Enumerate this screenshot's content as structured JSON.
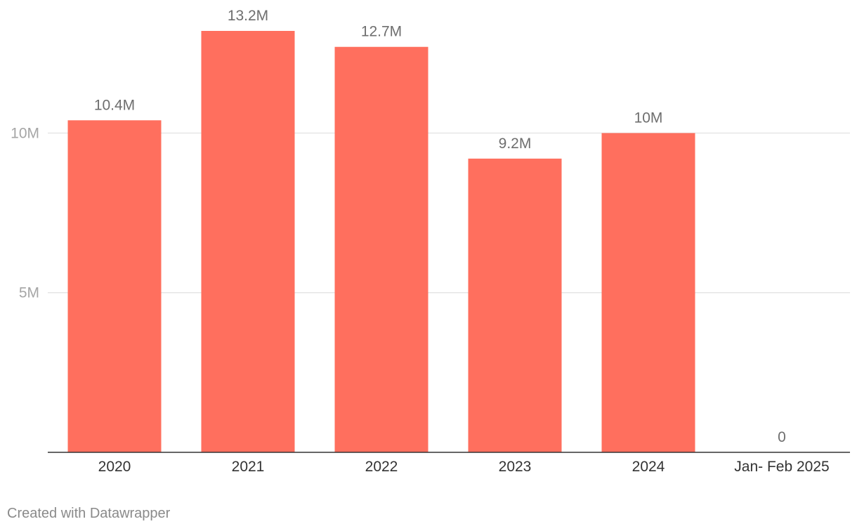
{
  "chart_data": {
    "type": "bar",
    "categories": [
      "2020",
      "2021",
      "2022",
      "2023",
      "2024",
      "Jan- Feb 2025"
    ],
    "values": [
      10.4,
      13.2,
      12.7,
      9.2,
      10,
      0
    ],
    "value_labels": [
      "10.4M",
      "13.2M",
      "12.7M",
      "9.2M",
      "10M",
      "0"
    ],
    "unit": "M",
    "title": "",
    "xlabel": "",
    "ylabel": "",
    "ylim": [
      0,
      13.2
    ],
    "yticks": [
      {
        "value": 5,
        "label": "5M"
      },
      {
        "value": 10,
        "label": "10M"
      }
    ],
    "grid": true,
    "legend": "none",
    "bar_color": "#ff6f5e"
  },
  "footer": {
    "credit": "Created with Datawrapper"
  }
}
